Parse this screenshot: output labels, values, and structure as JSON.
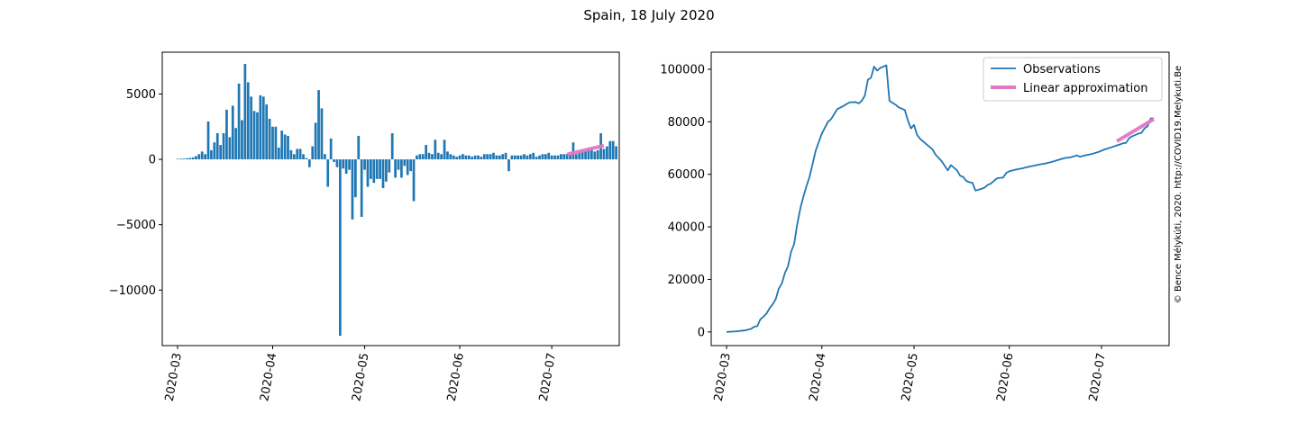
{
  "title": "Spain, 18 July 2020",
  "watermark": "© Bence Mélykúti, 2020. http://COVID19.Melykuti.Be",
  "colors": {
    "series": "#1f77b4",
    "approx": "#e377c2",
    "watermark": "#cccccc"
  },
  "chart_data": [
    {
      "type": "bar",
      "x_start": "2020-03-01",
      "x_end": "2020-07-18",
      "xlim": [
        "2020-02-25",
        "2020-07-23"
      ],
      "ylim": [
        -14250,
        8200
      ],
      "yticks": [
        5000,
        0,
        -5000,
        -10000
      ],
      "ytick_labels": [
        "5000",
        "0",
        "−5000",
        "−10000"
      ],
      "xticks": [
        "2020-03-01",
        "2020-04-01",
        "2020-05-01",
        "2020-06-01",
        "2020-07-01"
      ],
      "xtick_labels": [
        "2020-03",
        "2020-04",
        "2020-05",
        "2020-06",
        "2020-07"
      ],
      "values": [
        40,
        50,
        60,
        80,
        110,
        150,
        250,
        400,
        600,
        400,
        2900,
        700,
        1300,
        2000,
        1100,
        2000,
        3800,
        1700,
        4100,
        2400,
        5800,
        3000,
        7300,
        5900,
        4800,
        3700,
        3600,
        4900,
        4800,
        4200,
        3100,
        2500,
        2500,
        900,
        2200,
        1900,
        1800,
        700,
        400,
        800,
        800,
        400,
        100,
        -600,
        1000,
        2800,
        5300,
        3900,
        400,
        -2100,
        1600,
        -200,
        -600,
        -13500,
        -700,
        -1100,
        -800,
        -4600,
        -2900,
        1800,
        -4400,
        -800,
        -2100,
        -1500,
        -1800,
        -1500,
        -1500,
        -2200,
        -1700,
        -1000,
        2000,
        -1400,
        -800,
        -1400,
        -500,
        -1200,
        -900,
        -3200,
        300,
        400,
        400,
        1100,
        500,
        400,
        1500,
        500,
        400,
        1500,
        600,
        400,
        300,
        200,
        300,
        400,
        300,
        300,
        200,
        300,
        300,
        200,
        400,
        400,
        400,
        500,
        300,
        300,
        400,
        500,
        -900,
        300,
        300,
        300,
        300,
        400,
        300,
        400,
        500,
        200,
        300,
        400,
        400,
        500,
        300,
        300,
        300,
        400,
        400,
        400,
        400,
        1300,
        400,
        500,
        600,
        600,
        700,
        800,
        600,
        700,
        2000,
        800,
        1000,
        1400,
        1400,
        1000
      ],
      "approx": {
        "x": [
          "2020-07-06",
          "2020-07-18"
        ],
        "y": [
          380,
          1050
        ]
      }
    },
    {
      "type": "line",
      "x_start": "2020-03-01",
      "x_end": "2020-07-18",
      "xlim": [
        "2020-02-25",
        "2020-07-23"
      ],
      "ylim": [
        -5200,
        106500
      ],
      "yticks": [
        0,
        20000,
        40000,
        60000,
        80000,
        100000
      ],
      "ytick_labels": [
        "0",
        "20000",
        "40000",
        "60000",
        "80000",
        "100000"
      ],
      "xticks": [
        "2020-03-01",
        "2020-04-01",
        "2020-05-01",
        "2020-06-01",
        "2020-07-01"
      ],
      "xtick_labels": [
        "2020-03",
        "2020-04",
        "2020-05",
        "2020-06",
        "2020-07"
      ],
      "key_points": [
        [
          "2020-03-01",
          0
        ],
        [
          "2020-03-04",
          200
        ],
        [
          "2020-03-07",
          600
        ],
        [
          "2020-03-09",
          1200
        ],
        [
          "2020-03-10",
          2000
        ],
        [
          "2020-03-11",
          2200
        ],
        [
          "2020-03-12",
          4800
        ],
        [
          "2020-03-13",
          5800
        ],
        [
          "2020-03-14",
          7000
        ],
        [
          "2020-03-15",
          9000
        ],
        [
          "2020-03-16",
          10500
        ],
        [
          "2020-03-17",
          12500
        ],
        [
          "2020-03-18",
          16500
        ],
        [
          "2020-03-19",
          18500
        ],
        [
          "2020-03-20",
          22500
        ],
        [
          "2020-03-21",
          25000
        ],
        [
          "2020-03-22",
          30500
        ],
        [
          "2020-03-23",
          33500
        ],
        [
          "2020-03-24",
          41000
        ],
        [
          "2020-03-25",
          47000
        ],
        [
          "2020-03-26",
          51500
        ],
        [
          "2020-03-27",
          55500
        ],
        [
          "2020-03-28",
          59000
        ],
        [
          "2020-03-29",
          64000
        ],
        [
          "2020-03-30",
          69000
        ],
        [
          "2020-04-01",
          75500
        ],
        [
          "2020-04-03",
          80000
        ],
        [
          "2020-04-04",
          81000
        ],
        [
          "2020-04-06",
          84800
        ],
        [
          "2020-04-08",
          86000
        ],
        [
          "2020-04-10",
          87400
        ],
        [
          "2020-04-12",
          87500
        ],
        [
          "2020-04-13",
          87000
        ],
        [
          "2020-04-14",
          88000
        ],
        [
          "2020-04-15",
          90000
        ],
        [
          "2020-04-16",
          96000
        ],
        [
          "2020-04-17",
          96800
        ],
        [
          "2020-04-18",
          101000
        ],
        [
          "2020-04-19",
          99500
        ],
        [
          "2020-04-20",
          100500
        ],
        [
          "2020-04-22",
          101500
        ],
        [
          "2020-04-23",
          88000
        ],
        [
          "2020-04-25",
          86500
        ],
        [
          "2020-04-26",
          85500
        ],
        [
          "2020-04-28",
          84500
        ],
        [
          "2020-04-29",
          80500
        ],
        [
          "2020-04-30",
          77500
        ],
        [
          "2020-05-01",
          78800
        ],
        [
          "2020-05-02",
          75000
        ],
        [
          "2020-05-03",
          73500
        ],
        [
          "2020-05-06",
          70500
        ],
        [
          "2020-05-07",
          69500
        ],
        [
          "2020-05-08",
          67500
        ],
        [
          "2020-05-10",
          65000
        ],
        [
          "2020-05-12",
          61500
        ],
        [
          "2020-05-13",
          63500
        ],
        [
          "2020-05-15",
          61500
        ],
        [
          "2020-05-16",
          59500
        ],
        [
          "2020-05-17",
          59000
        ],
        [
          "2020-05-18",
          57500
        ],
        [
          "2020-05-19",
          57000
        ],
        [
          "2020-05-20",
          56800
        ],
        [
          "2020-05-21",
          53800
        ],
        [
          "2020-05-23",
          54500
        ],
        [
          "2020-05-24",
          55000
        ],
        [
          "2020-05-25",
          56000
        ],
        [
          "2020-05-26",
          56500
        ],
        [
          "2020-05-27",
          57500
        ],
        [
          "2020-05-28",
          58500
        ],
        [
          "2020-05-30",
          58800
        ],
        [
          "2020-05-31",
          60500
        ],
        [
          "2020-06-01",
          61200
        ],
        [
          "2020-06-03",
          61800
        ],
        [
          "2020-06-05",
          62200
        ],
        [
          "2020-06-07",
          62800
        ],
        [
          "2020-06-09",
          63300
        ],
        [
          "2020-06-11",
          63800
        ],
        [
          "2020-06-13",
          64200
        ],
        [
          "2020-06-15",
          64800
        ],
        [
          "2020-06-17",
          65500
        ],
        [
          "2020-06-19",
          66200
        ],
        [
          "2020-06-21",
          66500
        ],
        [
          "2020-06-23",
          67200
        ],
        [
          "2020-06-24",
          66700
        ],
        [
          "2020-06-26",
          67300
        ],
        [
          "2020-06-28",
          67800
        ],
        [
          "2020-06-30",
          68500
        ],
        [
          "2020-07-02",
          69500
        ],
        [
          "2020-07-04",
          70200
        ],
        [
          "2020-07-06",
          71000
        ],
        [
          "2020-07-08",
          71800
        ],
        [
          "2020-07-09",
          72000
        ],
        [
          "2020-07-10",
          73800
        ],
        [
          "2020-07-11",
          74500
        ],
        [
          "2020-07-12",
          75000
        ],
        [
          "2020-07-13",
          75500
        ],
        [
          "2020-07-14",
          75800
        ],
        [
          "2020-07-15",
          77500
        ],
        [
          "2020-07-16",
          78300
        ],
        [
          "2020-07-17",
          81300
        ],
        [
          "2020-07-18",
          81300
        ]
      ],
      "approx": {
        "x": [
          "2020-07-06",
          "2020-07-18"
        ],
        "y": [
          72600,
          81000
        ]
      },
      "legend": {
        "position": "top-right",
        "entries": [
          "Observations",
          "Linear approximation"
        ]
      }
    }
  ]
}
